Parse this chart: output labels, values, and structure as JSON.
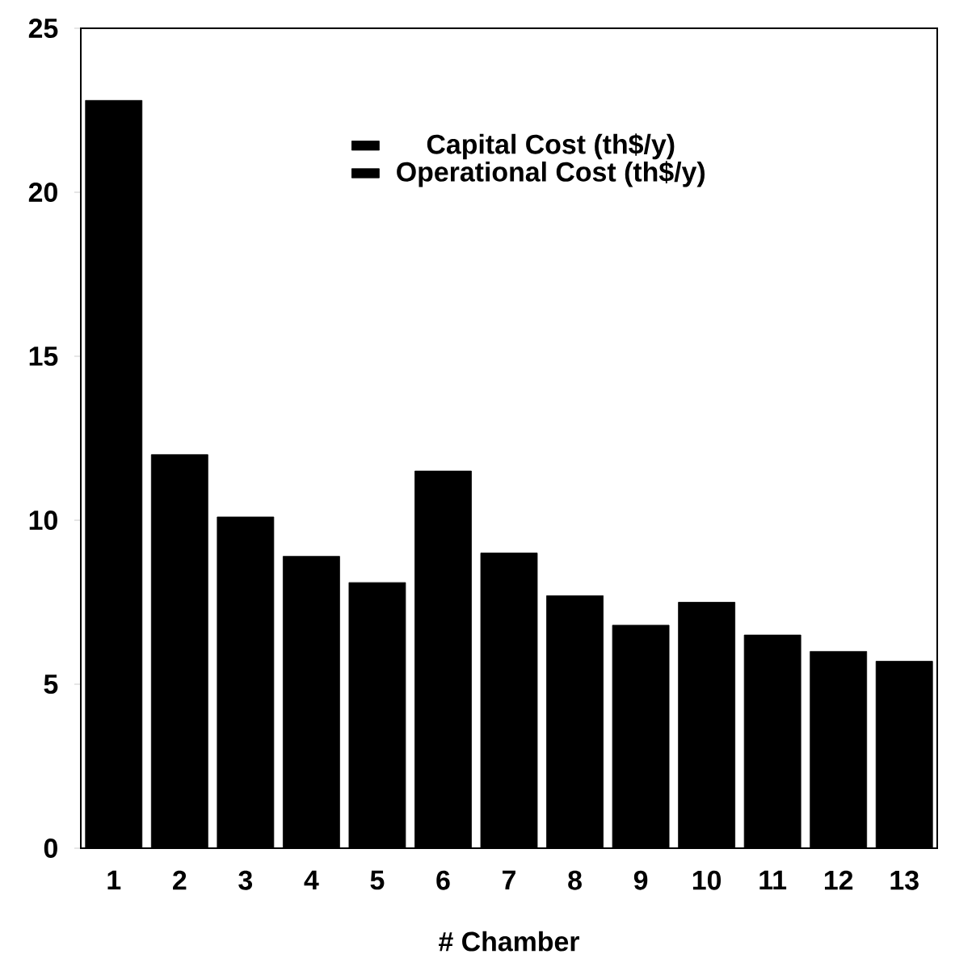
{
  "chart_data": {
    "type": "bar",
    "stacked": true,
    "xlabel": "# Chamber",
    "categories": [
      "1",
      "2",
      "3",
      "4",
      "5",
      "6",
      "7",
      "8",
      "9",
      "10",
      "11",
      "12",
      "13"
    ],
    "series": [
      {
        "name": "Capital Cost (th$/y)",
        "color": "#000000",
        "values": [
          22.8,
          12.0,
          10.1,
          8.9,
          8.1,
          11.5,
          9.0,
          7.7,
          6.8,
          7.5,
          6.5,
          6.0,
          5.7
        ]
      },
      {
        "name": "Operational Cost (th$/y)",
        "color": "#000000",
        "values": [
          null,
          null,
          null,
          null,
          null,
          null,
          null,
          null,
          null,
          null,
          null,
          null,
          null
        ]
      }
    ],
    "ylim": [
      0,
      25
    ],
    "yticks": [
      0,
      5,
      10,
      15,
      20,
      25
    ],
    "legend": "top",
    "grid": false
  }
}
